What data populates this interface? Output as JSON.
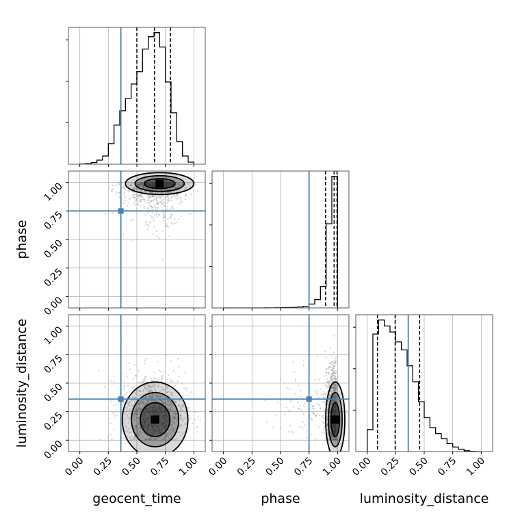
{
  "chart_data": {
    "type": "corner",
    "parameters": [
      {
        "key": "geocent_time",
        "label": "geocent_time",
        "range": [
          -0.1,
          1.1
        ],
        "truth": 0.36,
        "quantiles": [
          0.5,
          0.655,
          0.795
        ]
      },
      {
        "key": "phase",
        "label": "phase",
        "range": [
          -0.1,
          1.1
        ],
        "truth": 0.75,
        "quantiles": [
          0.895,
          0.97,
          0.995
        ]
      },
      {
        "key": "luminosity_distance",
        "label": "luminosity_distance",
        "range": [
          -0.1,
          1.1
        ],
        "truth": 0.36,
        "quantiles": [
          0.09,
          0.245,
          0.46
        ]
      }
    ],
    "ticks": {
      "values": [
        0.0,
        0.25,
        0.5,
        0.75,
        1.0
      ],
      "labels": [
        "0.00",
        "0.25",
        "0.50",
        "0.75",
        "1.00"
      ]
    },
    "histograms": [
      {
        "param": "geocent_time",
        "edges": [
          0.0,
          0.05,
          0.1,
          0.15,
          0.2,
          0.25,
          0.3,
          0.35,
          0.4,
          0.45,
          0.5,
          0.55,
          0.6,
          0.65,
          0.7,
          0.75,
          0.8,
          0.85,
          0.9,
          0.95,
          1.0
        ],
        "counts": [
          0.1,
          0.3,
          0.8,
          2,
          4,
          10,
          19,
          26,
          32,
          39,
          45,
          56,
          62,
          64,
          57,
          40,
          25,
          11,
          4,
          1
        ]
      },
      {
        "param": "phase",
        "edges": [
          0.0,
          0.05,
          0.1,
          0.15,
          0.2,
          0.25,
          0.3,
          0.35,
          0.4,
          0.45,
          0.5,
          0.55,
          0.6,
          0.65,
          0.7,
          0.75,
          0.8,
          0.85,
          0.9,
          0.95,
          1.0
        ],
        "counts": [
          0,
          0,
          0,
          0,
          0,
          0,
          0.02,
          0.05,
          0.1,
          0.2,
          0.3,
          0.5,
          0.7,
          1.2,
          2,
          5,
          11,
          28,
          110,
          172
        ]
      },
      {
        "param": "luminosity_distance",
        "edges": [
          0.0,
          0.05,
          0.1,
          0.15,
          0.2,
          0.25,
          0.3,
          0.35,
          0.4,
          0.45,
          0.5,
          0.55,
          0.6,
          0.65,
          0.7,
          0.75,
          0.8,
          0.85,
          0.9,
          0.95,
          1.0
        ],
        "counts": [
          11,
          59,
          66,
          63,
          60,
          55,
          51,
          43,
          35,
          25,
          17,
          12,
          9,
          6.5,
          4,
          2.3,
          1.2,
          0.4,
          0.1,
          0
        ]
      }
    ],
    "scatter_panels": [
      {
        "x": "geocent_time",
        "y": "phase",
        "density_peak": [
          0.7,
          0.99
        ],
        "truth_point": [
          0.36,
          0.75
        ]
      },
      {
        "x": "geocent_time",
        "y": "luminosity_distance",
        "density_peak": [
          0.66,
          0.18
        ],
        "truth_point": [
          0.36,
          0.36
        ]
      },
      {
        "x": "phase",
        "y": "luminosity_distance",
        "density_peak": [
          0.98,
          0.18
        ],
        "truth_point": [
          0.75,
          0.36
        ]
      }
    ],
    "colors": {
      "truth": "#4682b4",
      "hist": "#000000",
      "grid": "#b0b0b0",
      "points": "#8c8c8c"
    },
    "grid": true
  }
}
